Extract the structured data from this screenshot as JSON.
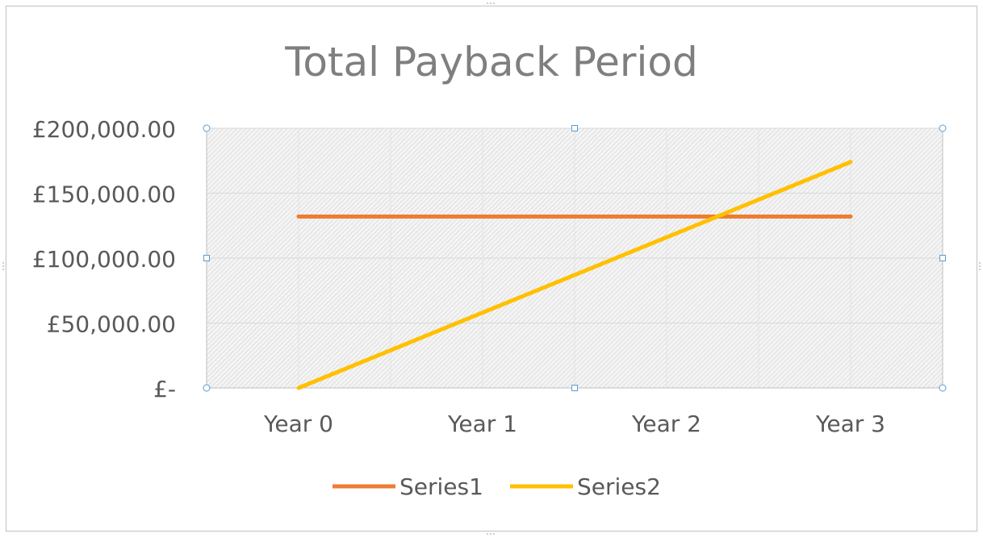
{
  "chart_data": {
    "type": "line",
    "title": "Total Payback Period",
    "categories": [
      "Year 0",
      "Year 1",
      "Year 2",
      "Year 3"
    ],
    "y_tick_labels": [
      "£-",
      "£50,000.00",
      "£100,000.00",
      "£150,000.00",
      "£200,000.00"
    ],
    "y_ticks": [
      0,
      50000,
      100000,
      150000,
      200000
    ],
    "ylim": [
      0,
      200000
    ],
    "grid": true,
    "legend_position": "bottom",
    "series": [
      {
        "name": "Series1",
        "color": "#ED7D31",
        "values": [
          132000,
          132000,
          132000,
          132000
        ]
      },
      {
        "name": "Series2",
        "color": "#FFC000",
        "values": [
          0,
          58000,
          116000,
          174000
        ]
      }
    ]
  }
}
